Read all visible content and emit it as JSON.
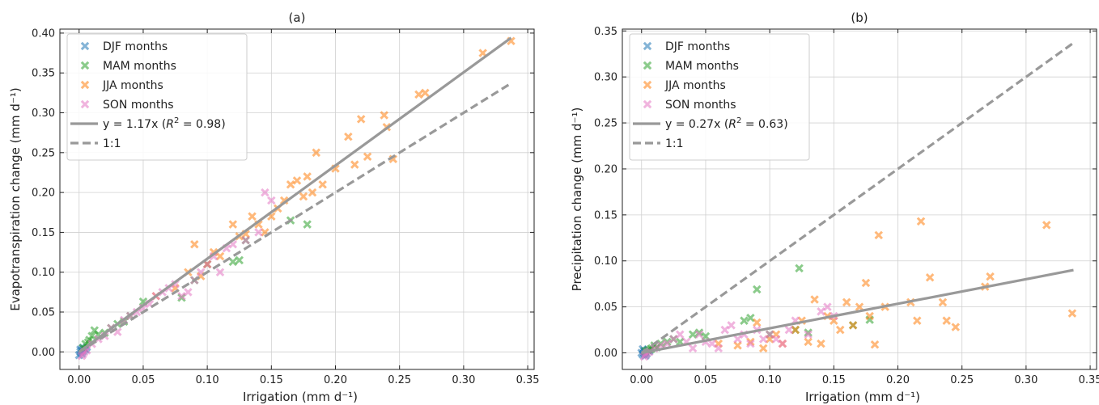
{
  "chart_data": [
    {
      "type": "scatter",
      "title": "(a)",
      "xlabel": "Irrigation (mm d⁻¹)",
      "ylabel": "Evapotranspiration change (mm d⁻¹)",
      "xlim": [
        -0.015,
        0.355
      ],
      "ylim": [
        -0.022,
        0.405
      ],
      "xticks": [
        0.0,
        0.05,
        0.1,
        0.15,
        0.2,
        0.25,
        0.3,
        0.35
      ],
      "xtick_labels": [
        "0.00",
        "0.05",
        "0.10",
        "0.15",
        "0.20",
        "0.25",
        "0.30",
        "0.35"
      ],
      "yticks": [
        0.0,
        0.05,
        0.1,
        0.15,
        0.2,
        0.25,
        0.3,
        0.35,
        0.4
      ],
      "ytick_labels": [
        "0.00",
        "0.05",
        "0.10",
        "0.15",
        "0.20",
        "0.25",
        "0.30",
        "0.35",
        "0.40"
      ],
      "grid": true,
      "legend_position": "top-left",
      "series": [
        {
          "name": "DJF months",
          "color": "#1f77b4",
          "marker": "x",
          "x": [
            0.0,
            0.001,
            0.002,
            0.003,
            0.004,
            0.005,
            0.002,
            0.001,
            0.003,
            0.006
          ],
          "y": [
            -0.004,
            0.0,
            0.002,
            0.001,
            0.004,
            0.003,
            -0.002,
            0.003,
            0.005,
            0.006
          ]
        },
        {
          "name": "MAM months",
          "color": "#2ca02c",
          "marker": "x",
          "x": [
            0.005,
            0.008,
            0.01,
            0.012,
            0.015,
            0.02,
            0.025,
            0.03,
            0.035,
            0.04,
            0.05,
            0.08,
            0.09,
            0.1,
            0.12,
            0.125,
            0.13,
            0.165,
            0.178,
            0.003,
            0.007
          ],
          "y": [
            0.01,
            0.015,
            0.02,
            0.027,
            0.022,
            0.024,
            0.03,
            0.035,
            0.038,
            0.045,
            0.063,
            0.068,
            0.09,
            0.11,
            0.113,
            0.115,
            0.14,
            0.165,
            0.16,
            0.005,
            0.012
          ]
        },
        {
          "name": "JJA months",
          "color": "#ff7f0e",
          "marker": "x",
          "x": [
            0.06,
            0.075,
            0.085,
            0.09,
            0.095,
            0.1,
            0.105,
            0.11,
            0.12,
            0.125,
            0.13,
            0.135,
            0.14,
            0.145,
            0.15,
            0.155,
            0.16,
            0.165,
            0.17,
            0.175,
            0.178,
            0.182,
            0.185,
            0.19,
            0.2,
            0.21,
            0.215,
            0.22,
            0.225,
            0.238,
            0.24,
            0.245,
            0.265,
            0.27,
            0.315,
            0.337
          ],
          "y": [
            0.07,
            0.08,
            0.1,
            0.135,
            0.095,
            0.11,
            0.125,
            0.12,
            0.16,
            0.145,
            0.148,
            0.17,
            0.16,
            0.15,
            0.17,
            0.18,
            0.19,
            0.21,
            0.215,
            0.195,
            0.22,
            0.2,
            0.25,
            0.21,
            0.23,
            0.27,
            0.235,
            0.292,
            0.245,
            0.297,
            0.282,
            0.242,
            0.323,
            0.325,
            0.375,
            0.39
          ]
        },
        {
          "name": "SON months",
          "color": "#e377c2",
          "marker": "x",
          "x": [
            0.002,
            0.004,
            0.01,
            0.015,
            0.02,
            0.025,
            0.03,
            0.035,
            0.04,
            0.045,
            0.05,
            0.055,
            0.06,
            0.065,
            0.07,
            0.075,
            0.08,
            0.085,
            0.09,
            0.095,
            0.1,
            0.105,
            0.11,
            0.115,
            0.12,
            0.13,
            0.14,
            0.145,
            0.15,
            0.003,
            0.006
          ],
          "y": [
            -0.005,
            0.0,
            0.01,
            0.016,
            0.02,
            0.03,
            0.025,
            0.04,
            0.045,
            0.05,
            0.055,
            0.06,
            0.07,
            0.075,
            0.08,
            0.085,
            0.07,
            0.075,
            0.09,
            0.1,
            0.11,
            0.12,
            0.1,
            0.13,
            0.135,
            0.14,
            0.15,
            0.2,
            0.19,
            -0.003,
            0.002
          ]
        }
      ],
      "lines": [
        {
          "name": "y = 1.17x (R² = 0.98)",
          "label_main": "y = 1.17x (",
          "label_r": "R",
          "label_sup": "2",
          "label_tail": " = 0.98)",
          "color": "#999999",
          "style": "solid",
          "x": [
            0.0,
            0.337
          ],
          "y": [
            0.0,
            0.394
          ]
        },
        {
          "name": "1:1",
          "label_main": "1:1",
          "color": "#999999",
          "style": "dashed",
          "x": [
            0.0,
            0.337
          ],
          "y": [
            0.0,
            0.337
          ]
        }
      ]
    },
    {
      "type": "scatter",
      "title": "(b)",
      "xlabel": "Irrigation (mm d⁻¹)",
      "ylabel": "Precipitation change (mm d⁻¹)",
      "xlim": [
        -0.015,
        0.355
      ],
      "ylim": [
        -0.018,
        0.352
      ],
      "xticks": [
        0.0,
        0.05,
        0.1,
        0.15,
        0.2,
        0.25,
        0.3,
        0.35
      ],
      "xtick_labels": [
        "0.00",
        "0.05",
        "0.10",
        "0.15",
        "0.20",
        "0.25",
        "0.30",
        "0.35"
      ],
      "yticks": [
        0.0,
        0.05,
        0.1,
        0.15,
        0.2,
        0.25,
        0.3,
        0.35
      ],
      "ytick_labels": [
        "0.00",
        "0.05",
        "0.10",
        "0.15",
        "0.20",
        "0.25",
        "0.30",
        "0.35"
      ],
      "grid": true,
      "legend_position": "top-left",
      "series": [
        {
          "name": "DJF months",
          "color": "#1f77b4",
          "marker": "x",
          "x": [
            0.0,
            0.001,
            0.002,
            0.003,
            0.004,
            0.005,
            0.002,
            0.001,
            0.003,
            0.006
          ],
          "y": [
            0.0,
            -0.002,
            0.002,
            0.001,
            -0.001,
            0.003,
            0.0,
            0.004,
            -0.003,
            0.002
          ]
        },
        {
          "name": "MAM months",
          "color": "#2ca02c",
          "marker": "x",
          "x": [
            0.005,
            0.008,
            0.01,
            0.012,
            0.015,
            0.02,
            0.025,
            0.03,
            0.04,
            0.045,
            0.05,
            0.08,
            0.085,
            0.09,
            0.1,
            0.12,
            0.123,
            0.13,
            0.165,
            0.178,
            0.003,
            0.007
          ],
          "y": [
            0.003,
            0.005,
            0.008,
            0.006,
            0.01,
            0.012,
            0.015,
            0.012,
            0.02,
            0.022,
            0.018,
            0.035,
            0.038,
            0.069,
            0.02,
            0.025,
            0.092,
            0.022,
            0.03,
            0.036,
            0.002,
            0.004
          ]
        },
        {
          "name": "JJA months",
          "color": "#ff7f0e",
          "marker": "x",
          "x": [
            0.06,
            0.075,
            0.085,
            0.09,
            0.095,
            0.1,
            0.105,
            0.11,
            0.12,
            0.125,
            0.13,
            0.135,
            0.14,
            0.145,
            0.15,
            0.155,
            0.16,
            0.165,
            0.17,
            0.175,
            0.178,
            0.182,
            0.185,
            0.19,
            0.21,
            0.215,
            0.218,
            0.225,
            0.235,
            0.238,
            0.245,
            0.268,
            0.272,
            0.316,
            0.336
          ],
          "y": [
            0.01,
            0.008,
            0.012,
            0.033,
            0.005,
            0.015,
            0.02,
            0.01,
            0.025,
            0.035,
            0.012,
            0.058,
            0.01,
            0.04,
            0.035,
            0.025,
            0.055,
            0.03,
            0.05,
            0.076,
            0.04,
            0.009,
            0.128,
            0.05,
            0.055,
            0.035,
            0.143,
            0.082,
            0.055,
            0.035,
            0.028,
            0.072,
            0.083,
            0.139,
            0.043
          ]
        },
        {
          "name": "SON months",
          "color": "#e377c2",
          "marker": "x",
          "x": [
            0.002,
            0.004,
            0.01,
            0.015,
            0.02,
            0.025,
            0.03,
            0.035,
            0.04,
            0.045,
            0.05,
            0.055,
            0.06,
            0.065,
            0.07,
            0.075,
            0.08,
            0.085,
            0.09,
            0.095,
            0.1,
            0.105,
            0.11,
            0.115,
            0.12,
            0.13,
            0.14,
            0.145,
            0.15,
            0.003,
            0.006
          ],
          "y": [
            -0.004,
            0.0,
            0.005,
            0.008,
            0.01,
            0.015,
            0.02,
            0.012,
            0.005,
            0.02,
            0.012,
            0.01,
            0.005,
            0.025,
            0.03,
            0.015,
            0.02,
            0.01,
            0.025,
            0.015,
            0.02,
            0.015,
            0.01,
            0.025,
            0.035,
            0.02,
            0.045,
            0.05,
            0.04,
            -0.002,
            0.001
          ]
        }
      ],
      "lines": [
        {
          "name": "y = 0.27x (R² = 0.63)",
          "label_main": "y = 0.27x (",
          "label_r": "R",
          "label_sup": "2",
          "label_tail": " = 0.63)",
          "color": "#999999",
          "style": "solid",
          "x": [
            0.0,
            0.337
          ],
          "y": [
            0.0,
            0.09
          ]
        },
        {
          "name": "1:1",
          "label_main": "1:1",
          "color": "#999999",
          "style": "dashed",
          "x": [
            0.0,
            0.337
          ],
          "y": [
            0.0,
            0.337
          ]
        }
      ]
    }
  ]
}
